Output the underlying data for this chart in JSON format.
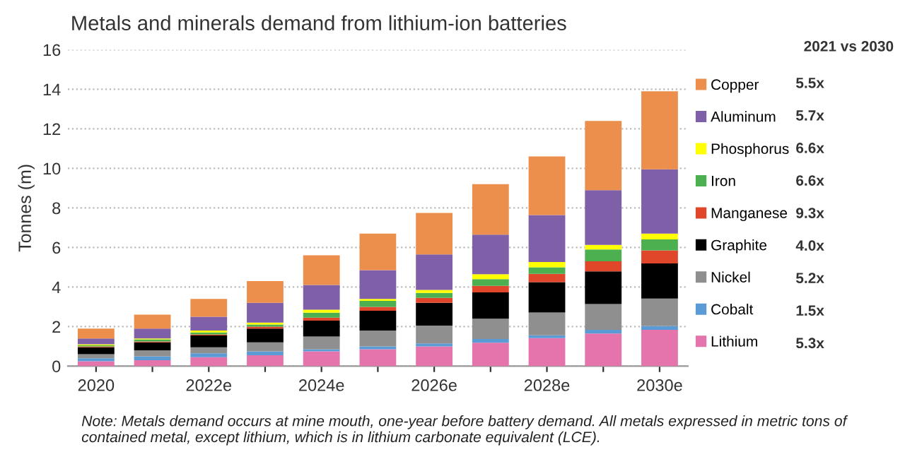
{
  "chart_data": {
    "type": "bar",
    "stacked": true,
    "title": "Metals and minerals demand from lithium-ion batteries",
    "ylabel": "Tonnes (m)",
    "categories": [
      "2020",
      null,
      "2022e",
      null,
      "2024e",
      null,
      "2026e",
      null,
      "2028e",
      null,
      "2030e"
    ],
    "series": [
      {
        "name": "Lithium",
        "color": "#e574ac",
        "values": [
          0.25,
          0.3,
          0.45,
          0.55,
          0.75,
          0.85,
          1.0,
          1.18,
          1.42,
          1.65,
          1.84
        ]
      },
      {
        "name": "Cobalt",
        "color": "#5b9bd5",
        "values": [
          0.15,
          0.2,
          0.2,
          0.2,
          0.1,
          0.15,
          0.15,
          0.19,
          0.14,
          0.19,
          0.19
        ]
      },
      {
        "name": "Nickel",
        "color": "#8f8f8f",
        "values": [
          0.2,
          0.3,
          0.3,
          0.45,
          0.65,
          0.8,
          0.9,
          1.03,
          1.15,
          1.3,
          1.39
        ]
      },
      {
        "name": "Graphite",
        "color": "#000000",
        "values": [
          0.35,
          0.4,
          0.6,
          0.7,
          0.8,
          1.0,
          1.15,
          1.33,
          1.54,
          1.65,
          1.77
        ]
      },
      {
        "name": "Manganese",
        "color": "#e0472a",
        "values": [
          0.05,
          0.05,
          0.05,
          0.1,
          0.15,
          0.2,
          0.25,
          0.33,
          0.42,
          0.51,
          0.66
        ]
      },
      {
        "name": "Iron",
        "color": "#4caf50",
        "values": [
          0.05,
          0.1,
          0.1,
          0.1,
          0.25,
          0.3,
          0.25,
          0.34,
          0.33,
          0.6,
          0.56
        ]
      },
      {
        "name": "Phosphorus",
        "color": "#ffff00",
        "values": [
          0.05,
          0.05,
          0.1,
          0.1,
          0.15,
          0.1,
          0.15,
          0.25,
          0.26,
          0.23,
          0.29
        ]
      },
      {
        "name": "Aluminum",
        "color": "#7f60a8",
        "values": [
          0.3,
          0.5,
          0.7,
          1.0,
          1.25,
          1.45,
          1.8,
          2.0,
          2.38,
          2.77,
          3.25
        ]
      },
      {
        "name": "Copper",
        "color": "#ed8f4c",
        "values": [
          0.5,
          0.7,
          0.9,
          1.1,
          1.5,
          1.85,
          2.1,
          2.55,
          2.96,
          3.5,
          3.95
        ]
      }
    ],
    "ylim": [
      0,
      16
    ],
    "yticks": [
      0,
      2,
      4,
      6,
      8,
      10,
      12,
      14,
      16
    ],
    "grid": "y",
    "legend": "right",
    "annotations": [
      "2021 vs 2030",
      "5.5x",
      "5.7x",
      "6.6x",
      "6.6x",
      "9.3x",
      "4.0x",
      "5.2x",
      "1.5x",
      "5.3x",
      "Note: Metals demand occurs at mine mouth, one-year before battery demand. All metals expressed in metric tons of contained metal, except lithium, which is in lithium carbonate equivalent (LCE)."
    ]
  }
}
